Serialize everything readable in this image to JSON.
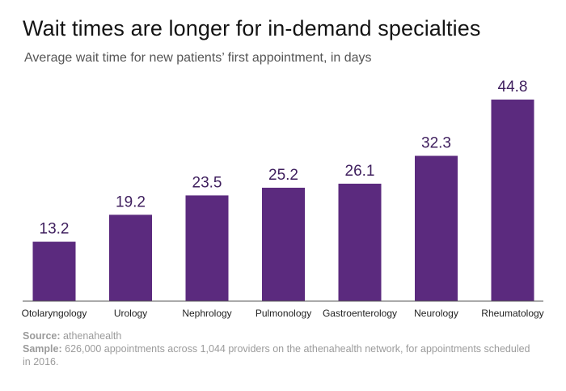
{
  "colors": {
    "bar": "#5b2a7e",
    "axis": "#555555",
    "label": "#3f1f5e"
  },
  "chart_data": {
    "type": "bar",
    "title": "Wait times are longer for in-demand specialties",
    "subtitle": "Average wait time for new patients’ first appointment, in days",
    "categories": [
      "Otolaryngology",
      "Urology",
      "Nephrology",
      "Pulmonology",
      "Gastroenterology",
      "Neurology",
      "Rheumatology"
    ],
    "values": [
      13.2,
      19.2,
      23.5,
      25.2,
      26.1,
      32.3,
      44.8
    ],
    "value_labels": [
      "13.2",
      "19.2",
      "23.5",
      "25.2",
      "26.1",
      "32.3",
      "44.8"
    ],
    "xlabel": "",
    "ylabel": "",
    "ylim": [
      0,
      47
    ],
    "grid": false
  },
  "footer": {
    "source_label": "Source:",
    "source_text": "athenahealth",
    "sample_label": "Sample:",
    "sample_text": "626,000 appointments across 1,044 providers on the athenahealth network, for appointments scheduled in 2016."
  }
}
